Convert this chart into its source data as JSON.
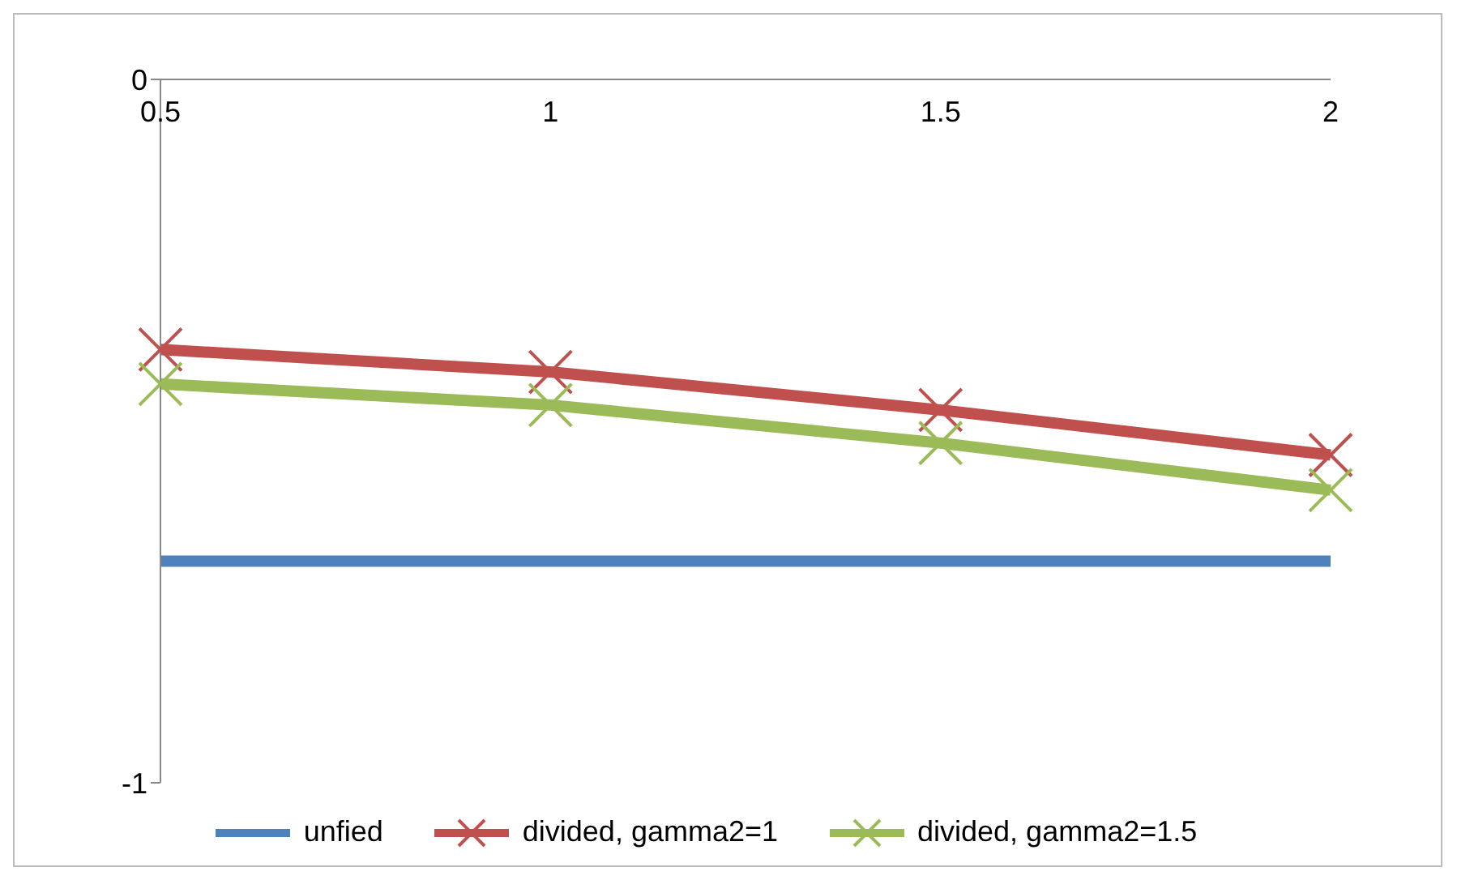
{
  "chart_data": {
    "type": "line",
    "categories": [
      "0.5",
      "1",
      "1.5",
      "2"
    ],
    "series": [
      {
        "name": "unfied",
        "color": "#4f81bd",
        "values": [
          -0.685,
          -0.685,
          -0.685,
          -0.685
        ],
        "marker": "none"
      },
      {
        "name": "divided, gamma2=1",
        "color": "#c0504d",
        "values": [
          -0.384,
          -0.416,
          -0.47,
          -0.534
        ],
        "marker": "cross"
      },
      {
        "name": "divided, gamma2=1.5",
        "color": "#9bbb59",
        "values": [
          -0.433,
          -0.463,
          -0.517,
          -0.584
        ],
        "marker": "cross"
      }
    ],
    "ylim": [
      -1,
      0
    ],
    "yticks": [
      -1,
      0
    ],
    "grid": false,
    "legend": "bottom"
  }
}
